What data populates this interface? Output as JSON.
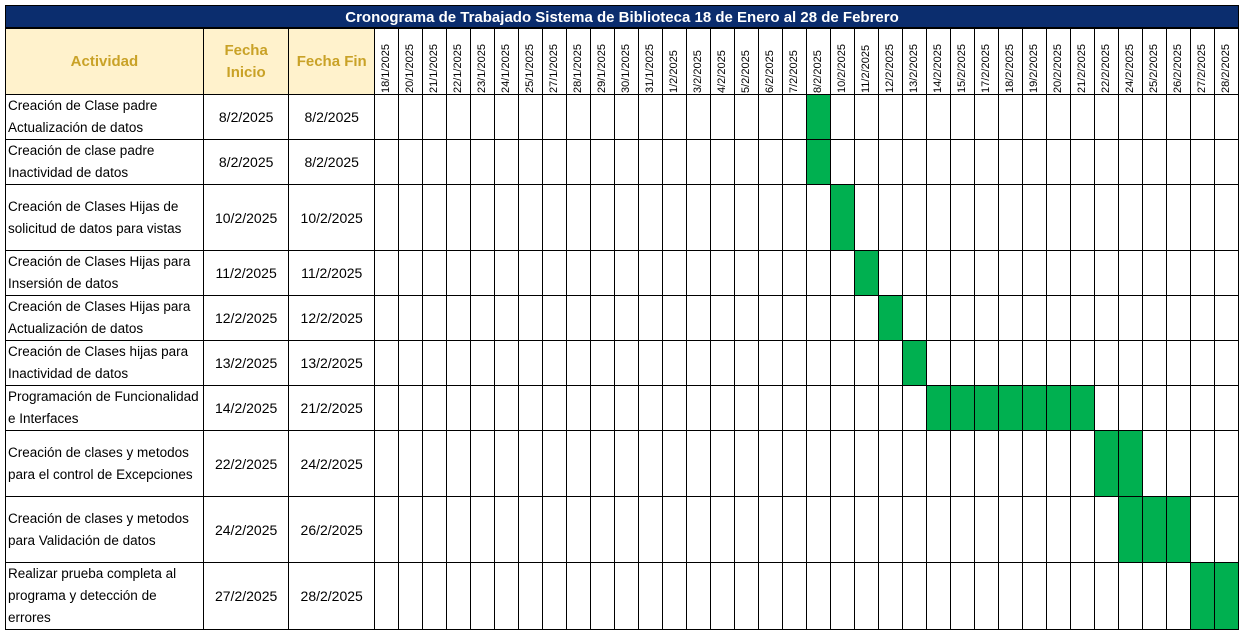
{
  "title": "Cronograma de Trabajado Sistema de Biblioteca 18 de Enero al 28 de Febrero",
  "headers": {
    "actividad": "Actividad",
    "fecha_inicio": "Fecha Inicio",
    "fecha_fin": "Fecha Fin"
  },
  "bar_color": "#00b050",
  "dates": [
    "18/1/2025",
    "20/1/2025",
    "21/1/2025",
    "22/1/2025",
    "23/1/2025",
    "24/1/2025",
    "25/1/2025",
    "27/1/2025",
    "28/1/2025",
    "29/1/2025",
    "30/1/2025",
    "31/1/2025",
    "1/2/2025",
    "3/2/2025",
    "4/2/2025",
    "5/2/2025",
    "6/2/2025",
    "7/2/2025",
    "8/2/2025",
    "10/2/2025",
    "11/2/2025",
    "12/2/2025",
    "13/2/2025",
    "14/2/2025",
    "15/2/2025",
    "17/2/2025",
    "18/2/2025",
    "19/2/2025",
    "20/2/2025",
    "21/2/2025",
    "22/2/2025",
    "24/2/2025",
    "25/2/2025",
    "26/2/2025",
    "27/2/2025",
    "28/2/2025"
  ],
  "tasks": [
    {
      "actividad": "Creación de Clase padre Actualización de datos",
      "inicio": "8/2/2025",
      "fin": "8/2/2025"
    },
    {
      "actividad": "Creación de clase padre Inactividad de datos",
      "inicio": "8/2/2025",
      "fin": "8/2/2025"
    },
    {
      "actividad": "Creación de Clases Hijas de solicitud de datos para vistas",
      "inicio": "10/2/2025",
      "fin": "10/2/2025"
    },
    {
      "actividad": "Creación de Clases Hijas para Insersión de datos",
      "inicio": "11/2/2025",
      "fin": "11/2/2025"
    },
    {
      "actividad": "Creación de Clases Hijas para Actualización de datos",
      "inicio": "12/2/2025",
      "fin": "12/2/2025"
    },
    {
      "actividad": "Creación de Clases hijas para Inactividad de datos",
      "inicio": "13/2/2025",
      "fin": "13/2/2025"
    },
    {
      "actividad": "Programación de Funcionalidad e Interfaces",
      "inicio": "14/2/2025",
      "fin": "21/2/2025"
    },
    {
      "actividad": "Creación de clases y metodos para el control de Excepciones",
      "inicio": "22/2/2025",
      "fin": "24/2/2025"
    },
    {
      "actividad": "Creación de clases y metodos para Validación de datos",
      "inicio": "24/2/2025",
      "fin": "26/2/2025"
    },
    {
      "actividad": "Realizar prueba completa al programa y detección de errores",
      "inicio": "27/2/2025",
      "fin": "28/2/2025"
    }
  ]
}
